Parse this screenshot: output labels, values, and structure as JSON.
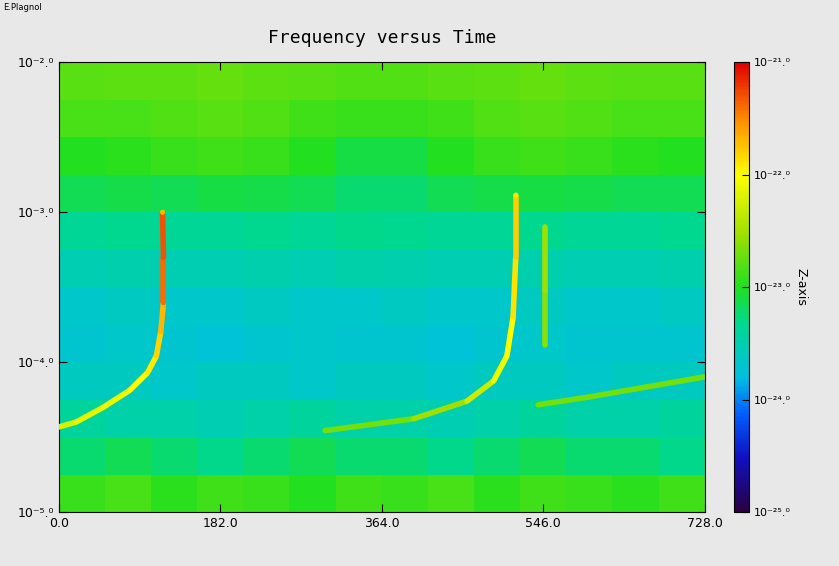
{
  "chart_data": {
    "type": "heatmap",
    "title": "Frequency versus Time",
    "annotations": [
      "E.Plagnol"
    ],
    "log": "y",
    "xlim": [
      0,
      728
    ],
    "xticks": [
      {
        "value": 0,
        "label": "0.0"
      },
      {
        "value": 182,
        "label": "182.0"
      },
      {
        "value": 364,
        "label": "364.0"
      },
      {
        "value": 546,
        "label": "546.0"
      },
      {
        "value": 728,
        "label": "728.0"
      }
    ],
    "ylim": [
      1e-05,
      0.01
    ],
    "yticks": [
      {
        "value": 1e-05,
        "label": "10⁻⁵.⁰"
      },
      {
        "value": 0.0001,
        "label": "10⁻⁴.⁰"
      },
      {
        "value": 0.001,
        "label": "10⁻³.⁰"
      },
      {
        "value": 0.01,
        "label": "10⁻².⁰"
      }
    ],
    "x_edges": [
      0,
      52,
      104,
      156,
      208,
      260,
      312,
      364,
      416,
      468,
      520,
      572,
      624,
      676,
      728
    ],
    "y_edges": [
      1e-05,
      1.78e-05,
      3.16e-05,
      5.62e-05,
      0.0001,
      0.000178,
      0.000316,
      0.000562,
      0.001,
      0.00178,
      0.00316,
      0.00562,
      0.01
    ],
    "cells": [
      [
        1.2e-23,
        1.4e-23,
        1.1e-23,
        1.3e-23,
        1.2e-23,
        1e-23,
        1.3e-23,
        1.2e-23,
        1.4e-23,
        1.1e-23,
        1.3e-23,
        1.2e-23,
        1.1e-23,
        1.3e-23
      ],
      [
        6e-24,
        7e-24,
        6e-24,
        5e-24,
        6e-24,
        7e-24,
        6e-24,
        6e-24,
        5e-24,
        6e-24,
        7e-24,
        6e-24,
        6e-24,
        5e-24
      ],
      [
        4e-24,
        3.5e-24,
        3.5e-24,
        3e-24,
        3.5e-24,
        4e-24,
        3.5e-24,
        3.5e-24,
        3e-24,
        3.5e-24,
        4e-24,
        3.5e-24,
        3.5e-24,
        4e-24
      ],
      [
        2.5e-24,
        2.5e-24,
        2.2e-24,
        2.5e-24,
        2.5e-24,
        2.2e-24,
        2.5e-24,
        2.5e-24,
        2.2e-24,
        2.5e-24,
        2.5e-24,
        2.2e-24,
        2.5e-24,
        2.5e-24
      ],
      [
        2e-24,
        2.2e-24,
        2e-24,
        1.8e-24,
        2e-24,
        2.2e-24,
        2e-24,
        2e-24,
        1.8e-24,
        2e-24,
        2.2e-24,
        2e-24,
        2e-24,
        2e-24
      ],
      [
        2.2e-24,
        2.4e-24,
        2.2e-24,
        2.2e-24,
        2.4e-24,
        2.2e-24,
        2.2e-24,
        2.4e-24,
        2.2e-24,
        2.2e-24,
        2.4e-24,
        2.2e-24,
        2.2e-24,
        2.4e-24
      ],
      [
        3e-24,
        3.2e-24,
        3e-24,
        3e-24,
        3.2e-24,
        3e-24,
        3.3e-24,
        3.2e-24,
        3e-24,
        3e-24,
        3.2e-24,
        3e-24,
        3e-24,
        3.2e-24
      ],
      [
        4.5e-24,
        4.8e-24,
        4.5e-24,
        4.5e-24,
        4.8e-24,
        4.5e-24,
        5e-24,
        4.8e-24,
        4.5e-24,
        4.5e-24,
        4.8e-24,
        4.5e-24,
        4.5e-24,
        4.8e-24
      ],
      [
        7e-24,
        7.5e-24,
        7e-24,
        8e-24,
        7.5e-24,
        7e-24,
        6e-24,
        6e-24,
        7e-24,
        7.5e-24,
        8e-24,
        7.5e-24,
        7e-24,
        7e-24
      ],
      [
        1e-23,
        1.1e-23,
        1.2e-23,
        1.3e-23,
        1.2e-23,
        1e-23,
        8e-24,
        8e-24,
        1e-23,
        1.2e-23,
        1.3e-23,
        1.2e-23,
        1.1e-23,
        1e-23
      ],
      [
        1.4e-23,
        1.4e-23,
        1.5e-23,
        1.6e-23,
        1.5e-23,
        1.3e-23,
        1.2e-23,
        1.2e-23,
        1.3e-23,
        1.5e-23,
        1.6e-23,
        1.5e-23,
        1.4e-23,
        1.4e-23
      ],
      [
        1.6e-23,
        1.7e-23,
        1.7e-23,
        1.8e-23,
        1.7e-23,
        1.6e-23,
        1.5e-23,
        1.5e-23,
        1.6e-23,
        1.7e-23,
        1.8e-23,
        1.7e-23,
        1.6e-23,
        1.6e-23
      ]
    ],
    "colorbar": {
      "label": "Z-axis",
      "range": [
        1e-25,
        1e-21
      ],
      "ticks": [
        {
          "value": 1e-25,
          "label": "10⁻²⁵.⁰"
        },
        {
          "value": 1e-24,
          "label": "10⁻²⁴.⁰"
        },
        {
          "value": 1e-23,
          "label": "10⁻²³.⁰"
        },
        {
          "value": 1e-22,
          "label": "10⁻²².⁰"
        },
        {
          "value": 1e-21,
          "label": "10⁻²¹.⁰"
        }
      ]
    },
    "series": [
      {
        "type": "line",
        "x": [
          0,
          20,
          50,
          80,
          100,
          110,
          115,
          118,
          118,
          117
        ],
        "values": [
          3.7e-05,
          4e-05,
          5e-05,
          6.5e-05,
          8.5e-05,
          0.00011,
          0.00016,
          0.00025,
          0.0005,
          0.001
        ],
        "levels": [
          6e-23,
          7e-23,
          8e-23,
          1e-22,
          1.2e-22,
          1.5e-22,
          2e-22,
          4e-22,
          5e-22,
          2e-22
        ]
      },
      {
        "type": "line",
        "x": [
          300,
          400,
          460,
          490,
          505,
          512,
          515,
          515
        ],
        "values": [
          3.5e-05,
          4.2e-05,
          5.5e-05,
          7.5e-05,
          0.00011,
          0.0002,
          0.0005,
          0.0013
        ],
        "levels": [
          2e-23,
          3e-23,
          5e-23,
          8e-23,
          1e-22,
          1.3e-22,
          1.6e-22,
          1.2e-22
        ]
      },
      {
        "type": "line",
        "x": [
          548,
          548,
          548
        ],
        "values": [
          0.00013,
          0.0003,
          0.0008
        ],
        "levels": [
          2.5e-23,
          3e-23,
          3e-23
        ]
      },
      {
        "type": "line",
        "x": [
          540,
          600,
          660,
          728
        ],
        "values": [
          5.2e-05,
          5.9e-05,
          6.8e-05,
          8e-05
        ],
        "levels": [
          2e-23,
          2e-23,
          2e-23,
          2e-23
        ]
      }
    ]
  }
}
